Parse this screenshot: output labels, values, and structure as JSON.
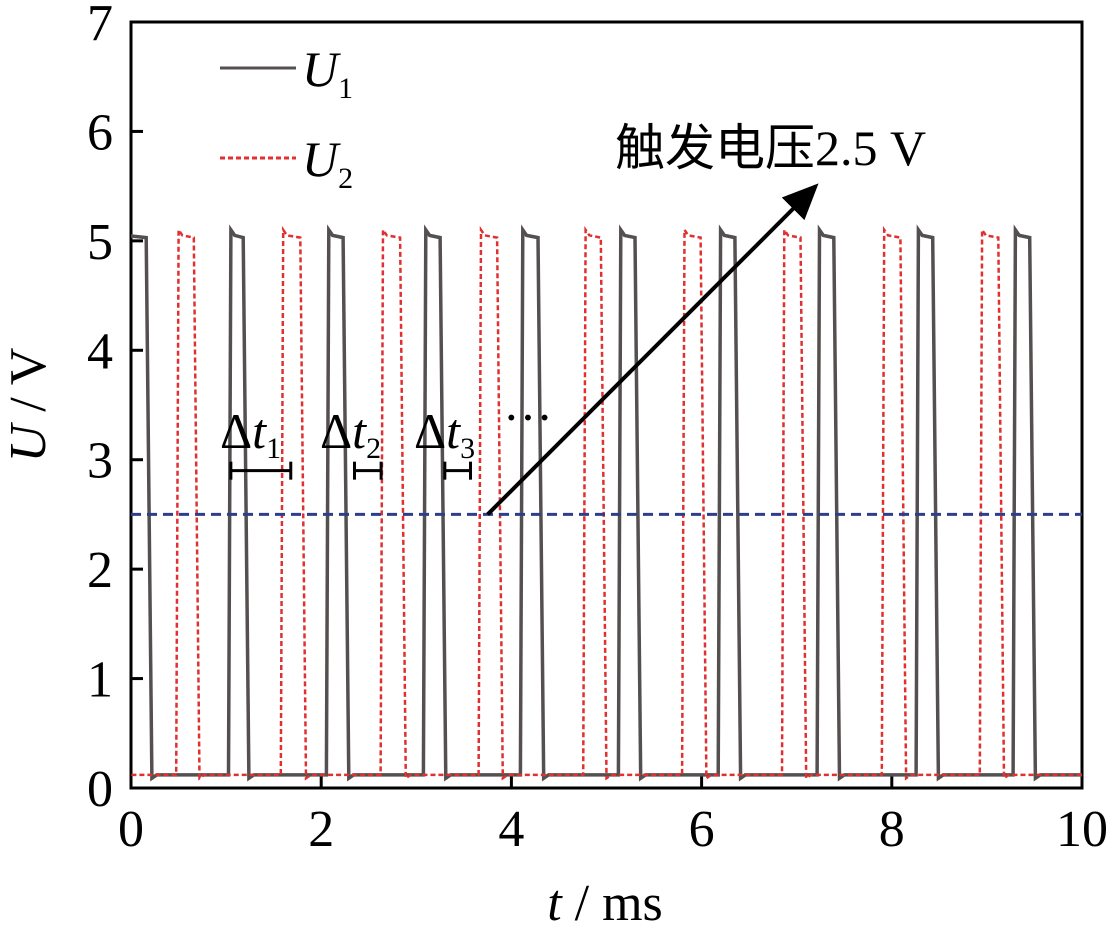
{
  "chart_data": {
    "type": "line",
    "xlabel_var": "t",
    "xlabel_unit": " / ms",
    "ylabel_var": "U",
    "ylabel_unit": " / V",
    "xlim": [
      0,
      10
    ],
    "ylim": [
      0,
      7
    ],
    "xticks": [
      "0",
      "2",
      "4",
      "6",
      "8",
      "10"
    ],
    "yticks": [
      "0",
      "1",
      "2",
      "3",
      "4",
      "5",
      "6",
      "7"
    ],
    "grid": false,
    "legend_position": "top-left",
    "series": [
      {
        "name": "U",
        "name_sub": "1",
        "color": "#555050",
        "style": "solid",
        "low": 0.12,
        "high": 5.05,
        "pulses": [
          [
            -0.1,
            0.18
          ],
          [
            1.05,
            1.2
          ],
          [
            2.08,
            2.25
          ],
          [
            3.1,
            3.27
          ],
          [
            4.12,
            4.3
          ],
          [
            5.15,
            5.32
          ],
          [
            6.2,
            6.37
          ],
          [
            7.24,
            7.41
          ],
          [
            8.28,
            8.45
          ],
          [
            9.3,
            9.47
          ]
        ]
      },
      {
        "name": "U",
        "name_sub": "2",
        "color": "#e03030",
        "style": "dashed",
        "low": 0.12,
        "high": 5.05,
        "pulses": [
          [
            0.5,
            0.68
          ],
          [
            1.6,
            1.8
          ],
          [
            2.65,
            2.85
          ],
          [
            3.68,
            3.87
          ],
          [
            4.78,
            4.96
          ],
          [
            5.82,
            6.01
          ],
          [
            6.87,
            7.06
          ],
          [
            7.92,
            8.11
          ],
          [
            8.95,
            9.14
          ]
        ]
      },
      {
        "name": "",
        "color": "#2c3e8c",
        "style": "dashed",
        "constant": 2.5
      }
    ],
    "annotations": {
      "trigger_label": "触发电压2.5 V",
      "trigger_arrow_from": [
        3.75,
        2.5
      ],
      "trigger_arrow_to": [
        7.2,
        5.5
      ],
      "delta_symbol": "Δ",
      "delta_var": "t",
      "intervals": [
        {
          "sub": "1",
          "x_from": 1.05,
          "x_to": 1.68,
          "y": 2.9
        },
        {
          "sub": "2",
          "x_from": 2.35,
          "x_to": 2.63,
          "y": 2.9
        },
        {
          "sub": "3",
          "x_from": 3.3,
          "x_to": 3.57,
          "y": 2.9
        }
      ],
      "ellipsis": "···"
    }
  }
}
